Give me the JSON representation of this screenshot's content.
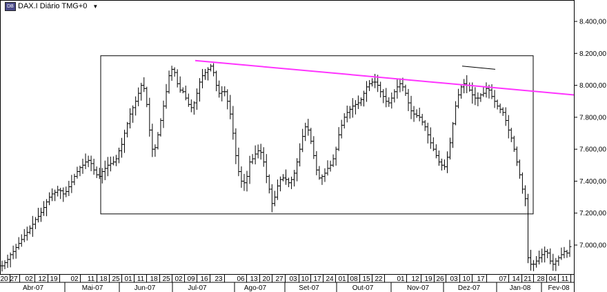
{
  "header": {
    "symbol_icon": "chart-symbol-icon",
    "title": "DAX.I Diário TMG+0",
    "dropdown_icon": "caret-down-icon"
  },
  "chart_data": {
    "type": "ohlc",
    "title": "DAX.I Diário TMG+0",
    "ylim": [
      6840,
      8620
    ],
    "y_ticks": [
      "8.400,00",
      "8.200,00",
      "8.000,00",
      "7.800,00",
      "7.600,00",
      "7.400,00",
      "7.200,00",
      "7.000,00"
    ],
    "y_tick_values": [
      8400,
      8200,
      8000,
      7800,
      7600,
      7400,
      7200,
      7000
    ],
    "day_ticks": [
      "20",
      "27",
      "02",
      "12",
      "19",
      "02",
      "11",
      "18",
      "25",
      "01",
      "11",
      "18",
      "25",
      "02",
      "09",
      "16",
      "23",
      "06",
      "13",
      "20",
      "27",
      "03",
      "10",
      "17",
      "24",
      "01",
      "08",
      "15",
      "22",
      "01",
      "12",
      "19",
      "26",
      "03",
      "10",
      "17",
      "07",
      "14",
      "21",
      "28",
      "04",
      "11"
    ],
    "month_ticks": [
      "Abr-07",
      "Mai-07",
      "Jun-07",
      "Jul-07",
      "Ago-07",
      "Set-07",
      "Out-07",
      "Nov-07",
      "Dez-07",
      "Jan-08",
      "Fev-08"
    ],
    "series": [
      {
        "name": "DAX.I",
        "close": [
          6870,
          6890,
          6910,
          6940,
          6960,
          6985,
          7010,
          7035,
          7060,
          7080,
          7105,
          7130,
          7160,
          7180,
          7205,
          7235,
          7270,
          7300,
          7320,
          7330,
          7345,
          7340,
          7320,
          7335,
          7365,
          7395,
          7430,
          7460,
          7485,
          7500,
          7520,
          7530,
          7510,
          7470,
          7440,
          7430,
          7460,
          7480,
          7500,
          7510,
          7520,
          7540,
          7590,
          7630,
          7700,
          7760,
          7820,
          7860,
          7900,
          7950,
          8000,
          7980,
          7880,
          7720,
          7600,
          7610,
          7690,
          7780,
          7870,
          7960,
          8060,
          8100,
          8080,
          8010,
          7970,
          7960,
          7920,
          7880,
          7860,
          7890,
          7950,
          8020,
          8060,
          8080,
          8100,
          8120,
          8080,
          8000,
          7950,
          7960,
          7960,
          7900,
          7820,
          7700,
          7560,
          7460,
          7400,
          7390,
          7430,
          7520,
          7540,
          7570,
          7590,
          7580,
          7520,
          7430,
          7350,
          7260,
          7300,
          7370,
          7410,
          7420,
          7410,
          7390,
          7410,
          7450,
          7520,
          7600,
          7680,
          7740,
          7720,
          7650,
          7560,
          7470,
          7420,
          7430,
          7450,
          7480,
          7500,
          7540,
          7600,
          7690,
          7750,
          7800,
          7830,
          7850,
          7870,
          7880,
          7890,
          7910,
          7950,
          7990,
          8010,
          8020,
          8020,
          8000,
          7960,
          7930,
          7900,
          7890,
          7920,
          7960,
          7990,
          8010,
          7990,
          7950,
          7890,
          7840,
          7820,
          7810,
          7800,
          7770,
          7740,
          7690,
          7640,
          7600,
          7560,
          7520,
          7500,
          7490,
          7550,
          7640,
          7760,
          7870,
          7940,
          7990,
          8010,
          8000,
          7970,
          7940,
          7920,
          7920,
          7940,
          7950,
          7980,
          7970,
          7930,
          7900,
          7870,
          7850,
          7830,
          7780,
          7720,
          7670,
          7600,
          7520,
          7440,
          7350,
          7290,
          6920,
          6880,
          6880,
          6900,
          6920,
          6940,
          6960,
          6950,
          6900,
          6880,
          6900,
          6920,
          6940,
          6960,
          6950,
          6990
        ]
      }
    ],
    "annotations": [
      {
        "type": "rectangle",
        "from": [
          "Abr-07 end",
          8185
        ],
        "to": [
          "Jan-08",
          7195
        ]
      },
      {
        "type": "trendline",
        "color": "#ff33ff",
        "from": [
          "Jul-07",
          8155
        ],
        "to": [
          "Fev-08",
          7940
        ]
      },
      {
        "type": "resistance",
        "color": "#000000",
        "from": [
          "Dez-07",
          8120
        ],
        "to": [
          "Dez-07 end",
          8100
        ]
      }
    ]
  }
}
